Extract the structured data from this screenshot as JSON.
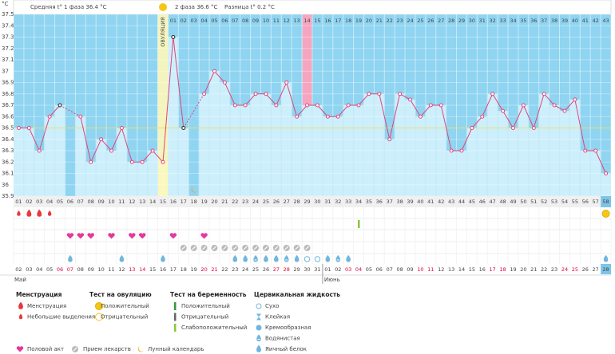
{
  "chart_data": {
    "type": "line",
    "unit": "°C",
    "header": {
      "phase1": "Средняя t° 1 фаза 36.4 °C",
      "phase2": "2 фаза 36.6 °C",
      "difference": "Разница t° 0.2 °C"
    },
    "ovulation_label": "ОВУЛЯЦИЯ",
    "ylim": [
      35.9,
      37.5
    ],
    "yticks": [
      35.9,
      36,
      36.1,
      36.2,
      36.3,
      36.4,
      36.5,
      36.6,
      36.7,
      36.8,
      36.9,
      37,
      37.1,
      37.2,
      37.3,
      37.4,
      37.5
    ],
    "categories": [
      "01",
      "02",
      "03",
      "04",
      "05",
      "06",
      "07",
      "08",
      "09",
      "10",
      "11",
      "12",
      "13",
      "14",
      "15",
      "16",
      "17",
      "18",
      "19",
      "20",
      "21",
      "22",
      "23",
      "24",
      "25",
      "26",
      "27",
      "28",
      "29",
      "30",
      "31",
      "32",
      "33",
      "34",
      "35",
      "36",
      "37",
      "38",
      "39",
      "40",
      "41",
      "42",
      "43",
      "44",
      "45",
      "46",
      "47",
      "48",
      "49",
      "50",
      "51",
      "52",
      "53",
      "54",
      "55",
      "56",
      "57",
      "58"
    ],
    "phase2_days": [
      null,
      null,
      null,
      null,
      null,
      null,
      null,
      null,
      null,
      null,
      null,
      null,
      null,
      null,
      null,
      "01",
      "02",
      "03",
      "04",
      "05",
      "06",
      "07",
      "08",
      "09",
      "10",
      "11",
      "12",
      "13",
      "14",
      "15",
      "16",
      "17",
      "18",
      "19",
      "20",
      "21",
      "22",
      "23",
      "24",
      "25",
      "26",
      "27",
      "28",
      "29",
      "30",
      "31",
      "32",
      "33",
      "34",
      "35",
      "36",
      "37",
      "38",
      "39",
      "40",
      "41",
      "42",
      "43"
    ],
    "values": [
      36.5,
      36.5,
      36.3,
      36.6,
      36.7,
      null,
      36.6,
      36.2,
      36.4,
      36.3,
      36.5,
      36.2,
      36.2,
      36.3,
      36.2,
      37.3,
      36.5,
      null,
      36.8,
      37.0,
      36.9,
      36.7,
      36.7,
      36.8,
      36.8,
      36.7,
      36.9,
      36.6,
      36.7,
      36.7,
      36.6,
      36.6,
      36.7,
      36.7,
      36.8,
      36.8,
      36.4,
      36.8,
      36.75,
      36.6,
      36.7,
      36.7,
      36.3,
      36.3,
      36.5,
      36.6,
      36.8,
      36.65,
      36.5,
      36.7,
      36.5,
      36.8,
      36.7,
      36.65,
      36.75,
      36.3,
      36.3,
      36.1
    ],
    "color": "#e0457b",
    "bar_color": "#cdeffc",
    "background_color": "#8fd4f1",
    "coverline": 36.5,
    "ovulation_day": "15",
    "highlight_day": "29",
    "today": "58",
    "edited_days": [
      "05",
      "16",
      "17"
    ],
    "dates": [
      "02",
      "03",
      "04",
      "05",
      {
        "label": "06",
        "color": "#e0003c"
      },
      {
        "label": "07",
        "color": "#e0003c"
      },
      "08",
      "09",
      "10",
      "11",
      "12",
      {
        "label": "13",
        "color": "#e0003c"
      },
      {
        "label": "14",
        "color": "#e0003c"
      },
      "15",
      "16",
      "17",
      "18",
      "19",
      {
        "label": "20",
        "color": "#e0003c"
      },
      {
        "label": "21",
        "color": "#e0003c"
      },
      "22",
      "23",
      "24",
      "25",
      "26",
      {
        "label": "27",
        "color": "#e0003c"
      },
      {
        "label": "28",
        "color": "#e0003c"
      },
      "29",
      "30",
      "31",
      "01",
      "02",
      {
        "label": "03",
        "color": "#e0003c"
      },
      {
        "label": "04",
        "color": "#e0003c"
      },
      "05",
      "06",
      "07",
      "08",
      "09",
      {
        "label": "10",
        "color": "#e0003c"
      },
      {
        "label": "11",
        "color": "#e0003c"
      },
      "12",
      "13",
      "14",
      "15",
      "16",
      {
        "label": "17",
        "color": "#e0003c"
      },
      {
        "label": "18",
        "color": "#e0003c"
      },
      "19",
      "20",
      "21",
      "22",
      "23",
      {
        "label": "24",
        "color": "#e0003c"
      },
      {
        "label": "25",
        "color": "#e0003c"
      },
      "26",
      "27",
      "28"
    ],
    "months": [
      "Май",
      "Июнь"
    ],
    "menstruation_heavy": [
      "02",
      "03"
    ],
    "menstruation_light": [
      "01",
      "04"
    ],
    "ovulation_test_positive": [
      "58"
    ],
    "pregnancy_test_weak": [
      "34"
    ],
    "intercourse": [
      "06",
      "07",
      "08",
      "10",
      "12",
      "13",
      "16",
      "19"
    ],
    "medication": [
      "17",
      "18",
      "19",
      "20",
      "21",
      "22",
      "23",
      "24",
      "25",
      "26",
      "27",
      "28",
      "29"
    ],
    "moon": [
      "18"
    ],
    "cervical_dry": [
      "29",
      "30"
    ],
    "cervical_watery": [
      "24",
      "27",
      "32"
    ],
    "cervical_eggwhite": [
      "06",
      "11",
      "15",
      "22",
      "23",
      "25",
      "26",
      "28",
      "31",
      "33",
      "58"
    ],
    "legend": {
      "menstruation": {
        "title": "Менструация",
        "items": [
          "Менструация",
          "Небольшие выделения"
        ]
      },
      "ovulation_test": {
        "title": "Тест на овуляцию",
        "items": [
          "Положительный",
          "Отрицательный"
        ]
      },
      "pregnancy_test": {
        "title": "Тест на беременность",
        "items": [
          "Положительный",
          "Отрицательный",
          "Слабоположительный"
        ]
      },
      "cervical": {
        "title": "Цервикальная жидкость",
        "items": [
          "Сухо",
          "Клейкая",
          "Кремообразная",
          "Водянистая",
          "Яичный белок"
        ]
      },
      "other": [
        "Половой акт",
        "Прием лекарств",
        "Лунный календарь"
      ]
    }
  }
}
